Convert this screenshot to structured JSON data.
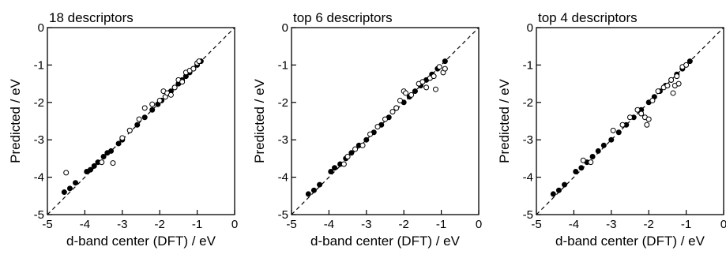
{
  "chart_data": [
    {
      "type": "scatter",
      "title": "18 descriptors",
      "xlabel": "d-band center (DFT) / eV",
      "ylabel": "Predicted / eV",
      "xlim": [
        -5,
        0
      ],
      "ylim": [
        -5,
        0
      ],
      "xticks": [
        -5,
        -4,
        -3,
        -2,
        -1,
        0
      ],
      "yticks": [
        -5,
        -4,
        -3,
        -2,
        -1,
        0
      ],
      "grid": false,
      "reference_line": "y = x, dashed",
      "series": [
        {
          "marker": "filled-circle",
          "points": [
            [
              -4.55,
              -4.4
            ],
            [
              -4.4,
              -4.3
            ],
            [
              -4.25,
              -4.15
            ],
            [
              -3.95,
              -3.85
            ],
            [
              -3.85,
              -3.8
            ],
            [
              -3.75,
              -3.7
            ],
            [
              -3.65,
              -3.6
            ],
            [
              -3.5,
              -3.45
            ],
            [
              -3.4,
              -3.35
            ],
            [
              -3.3,
              -3.3
            ],
            [
              -3.1,
              -3.1
            ],
            [
              -3.0,
              -3.0
            ],
            [
              -2.8,
              -2.75
            ],
            [
              -2.6,
              -2.6
            ],
            [
              -2.4,
              -2.4
            ],
            [
              -2.2,
              -2.2
            ],
            [
              -2.05,
              -2.05
            ],
            [
              -1.95,
              -1.95
            ],
            [
              -1.85,
              -1.85
            ],
            [
              -1.7,
              -1.7
            ],
            [
              -1.6,
              -1.6
            ],
            [
              -1.5,
              -1.5
            ],
            [
              -1.4,
              -1.4
            ],
            [
              -1.3,
              -1.3
            ],
            [
              -1.2,
              -1.2
            ],
            [
              -1.1,
              -1.1
            ],
            [
              -1.0,
              -1.0
            ],
            [
              -0.9,
              -0.9
            ]
          ]
        },
        {
          "marker": "open-circle",
          "points": [
            [
              -4.5,
              -3.88
            ],
            [
              -3.25,
              -3.62
            ],
            [
              -3.55,
              -3.6
            ],
            [
              -3.0,
              -2.95
            ],
            [
              -2.8,
              -2.75
            ],
            [
              -2.55,
              -2.45
            ],
            [
              -2.4,
              -2.15
            ],
            [
              -2.2,
              -2.05
            ],
            [
              -2.0,
              -1.95
            ],
            [
              -1.9,
              -1.7
            ],
            [
              -1.85,
              -1.85
            ],
            [
              -1.8,
              -1.75
            ],
            [
              -1.7,
              -1.8
            ],
            [
              -1.6,
              -1.6
            ],
            [
              -1.5,
              -1.4
            ],
            [
              -1.4,
              -1.45
            ],
            [
              -1.3,
              -1.2
            ],
            [
              -1.2,
              -1.15
            ],
            [
              -1.1,
              -1.1
            ],
            [
              -1.0,
              -0.95
            ],
            [
              -0.95,
              -0.9
            ]
          ]
        }
      ]
    },
    {
      "type": "scatter",
      "title": "top 6 descriptors",
      "xlabel": "d-band center (DFT) / eV",
      "ylabel": "Predicted / eV",
      "xlim": [
        -5,
        0
      ],
      "ylim": [
        -5,
        0
      ],
      "xticks": [
        -5,
        -4,
        -3,
        -2,
        -1,
        0
      ],
      "yticks": [
        -5,
        -4,
        -3,
        -2,
        -1,
        0
      ],
      "grid": false,
      "reference_line": "y = x, dashed",
      "series": [
        {
          "marker": "filled-circle",
          "points": [
            [
              -4.55,
              -4.45
            ],
            [
              -4.4,
              -4.35
            ],
            [
              -4.25,
              -4.2
            ],
            [
              -3.95,
              -3.85
            ],
            [
              -3.85,
              -3.75
            ],
            [
              -3.7,
              -3.65
            ],
            [
              -3.55,
              -3.5
            ],
            [
              -3.4,
              -3.35
            ],
            [
              -3.2,
              -3.15
            ],
            [
              -3.0,
              -3.0
            ],
            [
              -2.8,
              -2.8
            ],
            [
              -2.6,
              -2.6
            ],
            [
              -2.4,
              -2.4
            ],
            [
              -2.2,
              -2.15
            ],
            [
              -2.0,
              -2.0
            ],
            [
              -1.85,
              -1.85
            ],
            [
              -1.7,
              -1.7
            ],
            [
              -1.55,
              -1.55
            ],
            [
              -1.4,
              -1.4
            ],
            [
              -1.25,
              -1.25
            ],
            [
              -1.1,
              -1.1
            ],
            [
              -0.9,
              -0.9
            ]
          ]
        },
        {
          "marker": "open-circle",
          "points": [
            [
              -3.6,
              -3.65
            ],
            [
              -3.5,
              -3.45
            ],
            [
              -3.3,
              -3.25
            ],
            [
              -3.1,
              -3.15
            ],
            [
              -2.9,
              -2.85
            ],
            [
              -2.7,
              -2.65
            ],
            [
              -2.5,
              -2.45
            ],
            [
              -2.3,
              -2.25
            ],
            [
              -2.2,
              -2.15
            ],
            [
              -2.1,
              -1.95
            ],
            [
              -2.0,
              -1.7
            ],
            [
              -1.95,
              -1.75
            ],
            [
              -1.8,
              -1.8
            ],
            [
              -1.6,
              -1.5
            ],
            [
              -1.5,
              -1.45
            ],
            [
              -1.4,
              -1.6
            ],
            [
              -1.3,
              -1.35
            ],
            [
              -1.2,
              -1.3
            ],
            [
              -1.15,
              -1.65
            ],
            [
              -1.05,
              -1.05
            ],
            [
              -0.95,
              -1.2
            ],
            [
              -0.9,
              -1.1
            ]
          ]
        }
      ]
    },
    {
      "type": "scatter",
      "title": "top 4 descriptors",
      "xlabel": "d-band center (DFT) / eV",
      "ylabel": "Predicted / eV",
      "xlim": [
        -5,
        0
      ],
      "ylim": [
        -5,
        0
      ],
      "xticks": [
        -5,
        -4,
        -3,
        -2,
        -1,
        0
      ],
      "yticks": [
        -5,
        -4,
        -3,
        -2,
        -1,
        0
      ],
      "grid": false,
      "reference_line": "y = x, dashed",
      "series": [
        {
          "marker": "filled-circle",
          "points": [
            [
              -4.55,
              -4.45
            ],
            [
              -4.4,
              -4.35
            ],
            [
              -4.25,
              -4.2
            ],
            [
              -3.95,
              -3.85
            ],
            [
              -3.8,
              -3.75
            ],
            [
              -3.65,
              -3.6
            ],
            [
              -3.5,
              -3.45
            ],
            [
              -3.35,
              -3.3
            ],
            [
              -3.2,
              -3.15
            ],
            [
              -3.0,
              -3.0
            ],
            [
              -2.8,
              -2.8
            ],
            [
              -2.6,
              -2.6
            ],
            [
              -2.4,
              -2.4
            ],
            [
              -2.2,
              -2.2
            ],
            [
              -2.0,
              -2.0
            ],
            [
              -1.85,
              -1.85
            ],
            [
              -1.7,
              -1.7
            ],
            [
              -1.55,
              -1.55
            ],
            [
              -1.4,
              -1.4
            ],
            [
              -1.25,
              -1.25
            ],
            [
              -1.1,
              -1.1
            ],
            [
              -0.9,
              -0.9
            ]
          ]
        },
        {
          "marker": "open-circle",
          "points": [
            [
              -3.75,
              -3.55
            ],
            [
              -3.55,
              -3.6
            ],
            [
              -2.95,
              -2.75
            ],
            [
              -2.7,
              -2.6
            ],
            [
              -2.5,
              -2.4
            ],
            [
              -2.3,
              -2.2
            ],
            [
              -2.2,
              -2.3
            ],
            [
              -2.1,
              -2.4
            ],
            [
              -2.05,
              -2.6
            ],
            [
              -2.0,
              -2.45
            ],
            [
              -1.9,
              -1.95
            ],
            [
              -1.75,
              -1.7
            ],
            [
              -1.6,
              -1.6
            ],
            [
              -1.5,
              -1.55
            ],
            [
              -1.4,
              -1.4
            ],
            [
              -1.35,
              -1.75
            ],
            [
              -1.3,
              -1.55
            ],
            [
              -1.25,
              -1.3
            ],
            [
              -1.2,
              -1.5
            ],
            [
              -1.1,
              -1.05
            ],
            [
              -1.0,
              -1.0
            ]
          ]
        }
      ]
    }
  ]
}
